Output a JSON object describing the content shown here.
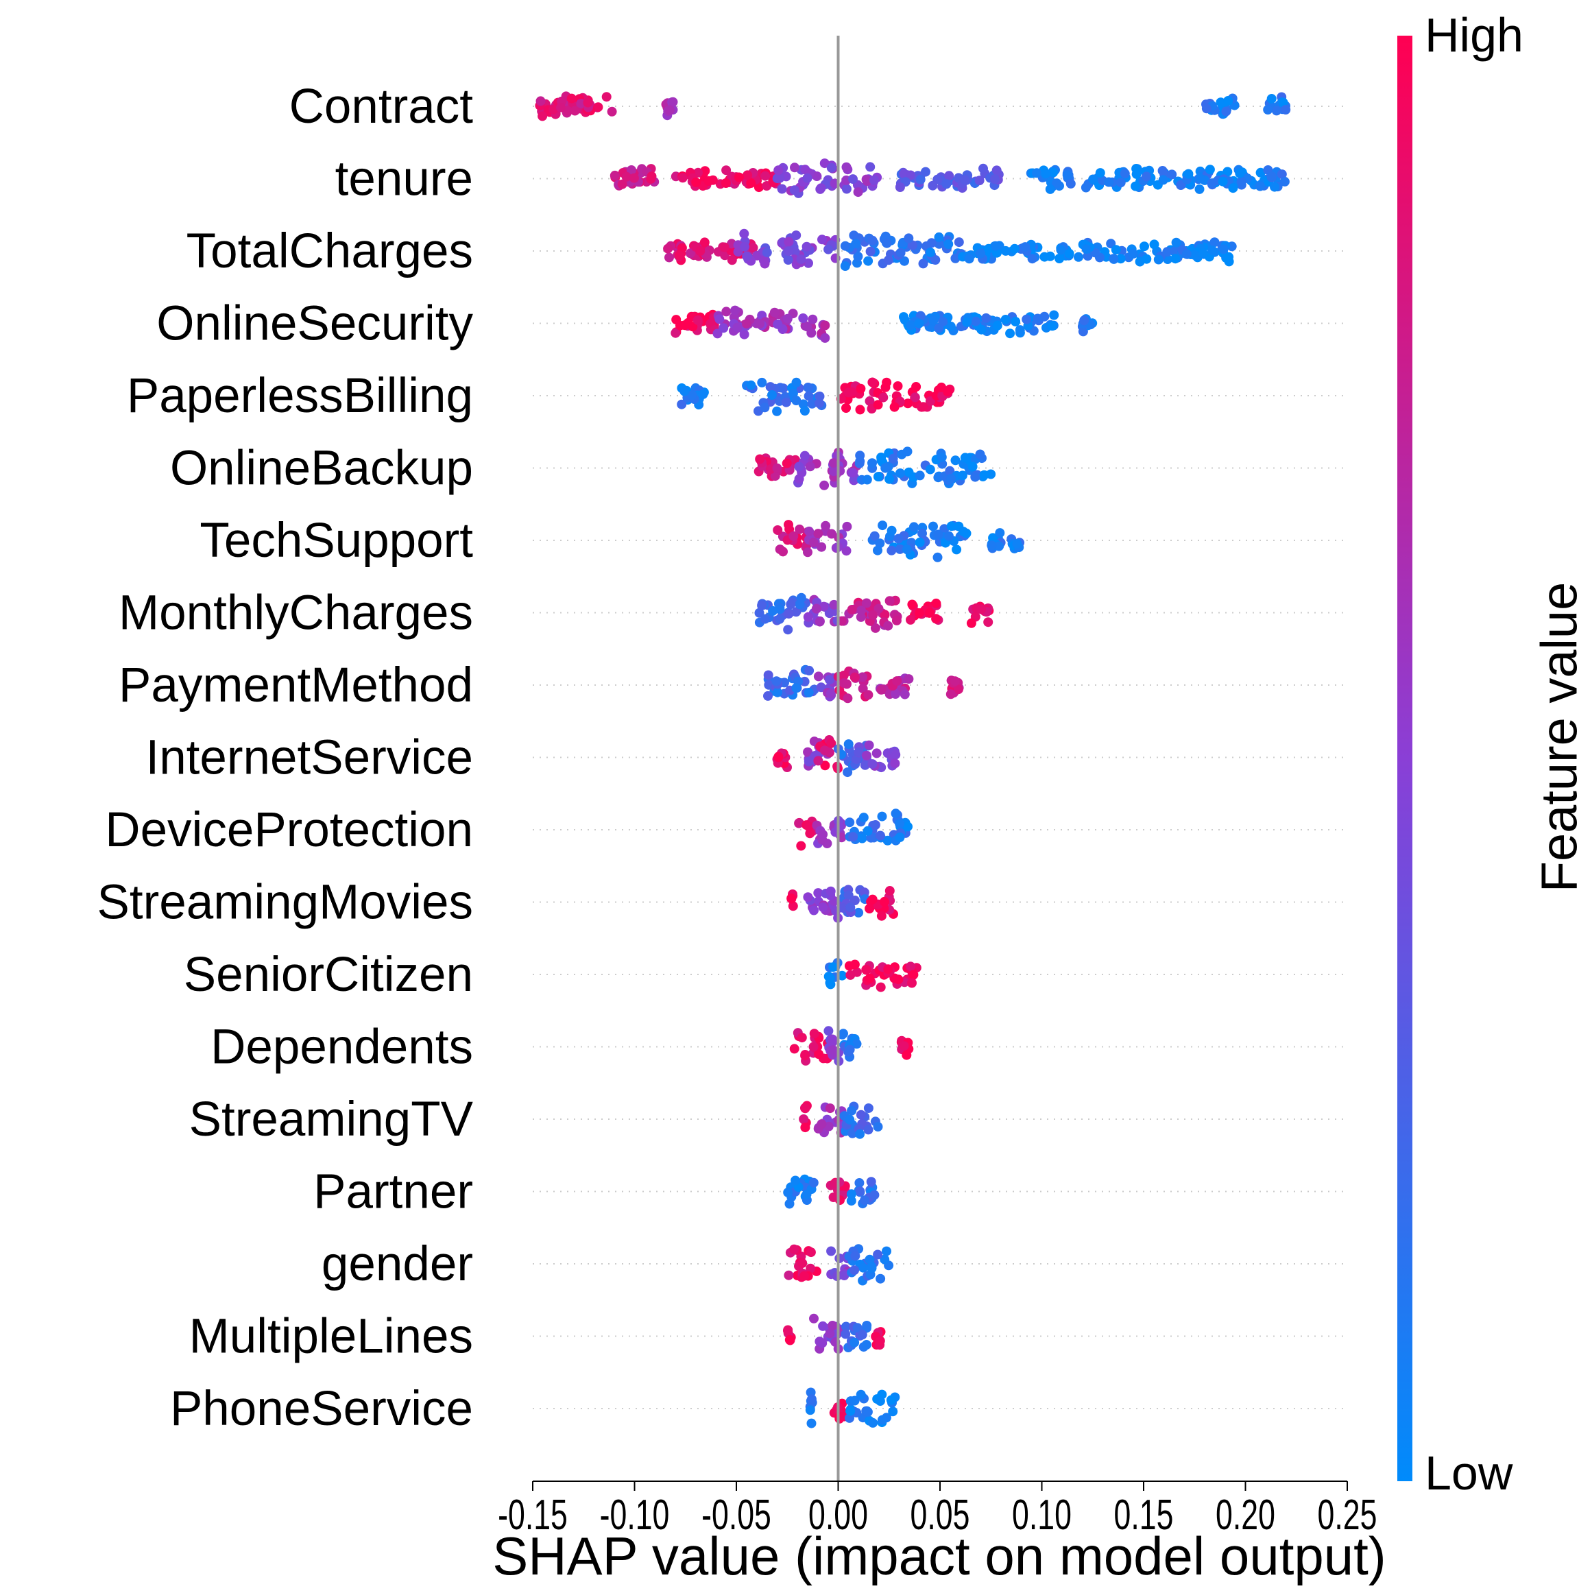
{
  "chart_data": {
    "type": "scatter",
    "subtype": "shap-beeswarm",
    "title": "",
    "xlabel": "SHAP value (impact on model output)",
    "ylabel": "",
    "xlim": [
      -0.15,
      0.25
    ],
    "xticks": [
      "-0.15",
      "-0.10",
      "-0.05",
      "0.00",
      "0.05",
      "0.10",
      "0.15",
      "0.20",
      "0.25"
    ],
    "xtick_values": [
      -0.15,
      -0.1,
      -0.05,
      0.0,
      0.05,
      0.1,
      0.15,
      0.2,
      0.25
    ],
    "grid": false,
    "zero_line": 0,
    "colorbar": {
      "title": "Feature value",
      "high_label": "High",
      "low_label": "Low",
      "high_color": "#ff0052",
      "mid_color": "#8a3fd6",
      "low_color": "#008bfb"
    },
    "features": [
      {
        "name": "Contract",
        "ranges": [
          [
            -0.15,
            -0.11,
            0.85
          ],
          [
            -0.085,
            -0.08,
            0.6
          ],
          [
            0.18,
            0.195,
            0.1
          ],
          [
            0.21,
            0.22,
            0.1
          ]
        ]
      },
      {
        "name": "tenure",
        "ranges": [
          [
            -0.11,
            -0.09,
            0.8
          ],
          [
            -0.08,
            -0.03,
            0.9
          ],
          [
            -0.03,
            0.02,
            0.5
          ],
          [
            0.03,
            0.08,
            0.3
          ],
          [
            0.09,
            0.22,
            0.08
          ]
        ]
      },
      {
        "name": "TotalCharges",
        "ranges": [
          [
            -0.085,
            -0.04,
            0.85
          ],
          [
            -0.05,
            0.0,
            0.45
          ],
          [
            0.0,
            0.06,
            0.15
          ],
          [
            0.06,
            0.195,
            0.05
          ]
        ]
      },
      {
        "name": "OnlineSecurity",
        "ranges": [
          [
            -0.08,
            -0.06,
            0.95
          ],
          [
            -0.06,
            -0.005,
            0.6
          ],
          [
            0.03,
            0.11,
            0.08
          ],
          [
            0.12,
            0.125,
            0.08
          ]
        ]
      },
      {
        "name": "PaperlessBilling",
        "ranges": [
          [
            -0.078,
            -0.065,
            0.1
          ],
          [
            -0.045,
            -0.008,
            0.15
          ],
          [
            0.0,
            0.055,
            0.95
          ]
        ]
      },
      {
        "name": "OnlineBackup",
        "ranges": [
          [
            -0.04,
            -0.02,
            0.85
          ],
          [
            -0.02,
            0.01,
            0.55
          ],
          [
            0.01,
            0.075,
            0.1
          ]
        ]
      },
      {
        "name": "TechSupport",
        "ranges": [
          [
            -0.03,
            -0.015,
            0.85
          ],
          [
            -0.015,
            0.005,
            0.6
          ],
          [
            0.015,
            0.065,
            0.1
          ],
          [
            0.075,
            0.09,
            0.1
          ]
        ]
      },
      {
        "name": "MonthlyCharges",
        "ranges": [
          [
            -0.04,
            -0.015,
            0.2
          ],
          [
            -0.015,
            0.0,
            0.5
          ],
          [
            0.0,
            0.03,
            0.75
          ],
          [
            0.035,
            0.05,
            0.95
          ],
          [
            0.065,
            0.075,
            0.95
          ]
        ]
      },
      {
        "name": "PaymentMethod",
        "ranges": [
          [
            -0.035,
            -0.01,
            0.2
          ],
          [
            -0.01,
            0.0,
            0.5
          ],
          [
            0.0,
            0.015,
            0.8
          ],
          [
            0.02,
            0.035,
            0.7
          ],
          [
            0.055,
            0.06,
            0.8
          ]
        ]
      },
      {
        "name": "InternetService",
        "ranges": [
          [
            -0.03,
            -0.025,
            0.95
          ],
          [
            -0.015,
            -0.005,
            0.5
          ],
          [
            -0.01,
            0.0,
            0.9
          ],
          [
            0.0,
            0.015,
            0.2
          ],
          [
            0.01,
            0.03,
            0.45
          ]
        ]
      },
      {
        "name": "DeviceProtection",
        "ranges": [
          [
            -0.02,
            -0.012,
            0.9
          ],
          [
            -0.012,
            0.002,
            0.55
          ],
          [
            0.005,
            0.03,
            0.15
          ],
          [
            0.03,
            0.035,
            0.1
          ]
        ]
      },
      {
        "name": "StreamingMovies",
        "ranges": [
          [
            -0.023,
            -0.022,
            0.95
          ],
          [
            -0.015,
            0.0,
            0.55
          ],
          [
            0.0,
            0.015,
            0.25
          ],
          [
            0.015,
            0.028,
            0.95
          ]
        ]
      },
      {
        "name": "SeniorCitizen",
        "ranges": [
          [
            -0.005,
            0.002,
            0.05
          ],
          [
            0.005,
            0.04,
            0.95
          ]
        ]
      },
      {
        "name": "Dependents",
        "ranges": [
          [
            -0.022,
            -0.005,
            0.9
          ],
          [
            -0.005,
            0.002,
            0.5
          ],
          [
            0.002,
            0.012,
            0.15
          ],
          [
            0.03,
            0.035,
            0.95
          ]
        ]
      },
      {
        "name": "StreamingTV",
        "ranges": [
          [
            -0.017,
            -0.015,
            0.95
          ],
          [
            -0.01,
            0.003,
            0.6
          ],
          [
            0.003,
            0.02,
            0.2
          ]
        ]
      },
      {
        "name": "Partner",
        "ranges": [
          [
            -0.025,
            -0.01,
            0.1
          ],
          [
            -0.005,
            0.005,
            0.9
          ],
          [
            0.005,
            0.018,
            0.15
          ]
        ]
      },
      {
        "name": "gender",
        "ranges": [
          [
            -0.025,
            -0.01,
            0.9
          ],
          [
            -0.005,
            0.005,
            0.5
          ],
          [
            0.005,
            0.025,
            0.15
          ]
        ]
      },
      {
        "name": "MultipleLines",
        "ranges": [
          [
            -0.025,
            -0.023,
            0.95
          ],
          [
            -0.012,
            0.002,
            0.5
          ],
          [
            0.002,
            0.015,
            0.2
          ],
          [
            0.018,
            0.022,
            0.95
          ]
        ]
      },
      {
        "name": "PhoneService",
        "ranges": [
          [
            -0.015,
            -0.012,
            0.1
          ],
          [
            -0.002,
            0.003,
            0.95
          ],
          [
            0.005,
            0.028,
            0.08
          ]
        ]
      }
    ]
  }
}
